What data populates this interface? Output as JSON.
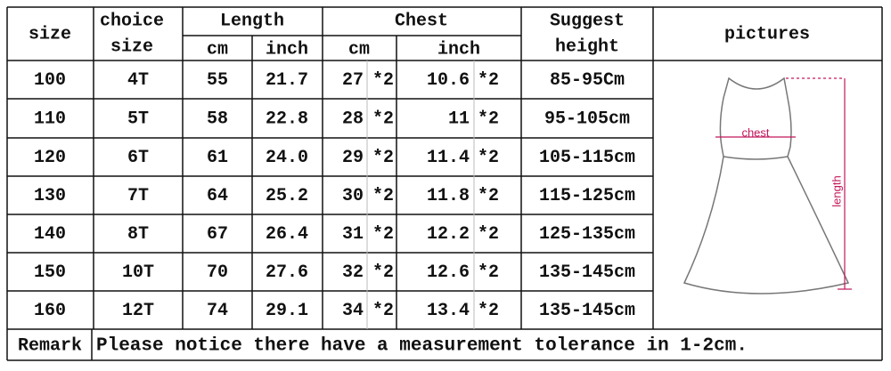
{
  "header": {
    "size": "size",
    "choice_size": [
      "choice",
      "size"
    ],
    "length": "Length",
    "chest": "Chest",
    "suggest_height": [
      "Suggest",
      "height"
    ],
    "pictures": "pictures",
    "sub": [
      "cm",
      "inch",
      "cm",
      "inch"
    ]
  },
  "table": {
    "rows": [
      [
        "100",
        "4T",
        "55",
        "21.7",
        "27",
        "*2",
        "10.6",
        "*2",
        "85-95Cm"
      ],
      [
        "110",
        "5T",
        "58",
        "22.8",
        "28",
        "*2",
        "11",
        "*2",
        "95-105cm"
      ],
      [
        "120",
        "6T",
        "61",
        "24.0",
        "29",
        "*2",
        "11.4",
        "*2",
        "105-115cm"
      ],
      [
        "130",
        "7T",
        "64",
        "25.2",
        "30",
        "*2",
        "11.8",
        "*2",
        "115-125cm"
      ],
      [
        "140",
        "8T",
        "67",
        "26.4",
        "31",
        "*2",
        "12.2",
        "*2",
        "125-135cm"
      ],
      [
        "150",
        "10T",
        "70",
        "27.6",
        "32",
        "*2",
        "12.6",
        "*2",
        "135-145cm"
      ],
      [
        "160",
        "12T",
        "74",
        "29.1",
        "34",
        "*2",
        "13.4",
        "*2",
        "135-145cm"
      ]
    ]
  },
  "remark": {
    "label": "Remark",
    "text": "Please notice there have a measurement tolerance in 1-2cm."
  },
  "picture": {
    "chest": "chest",
    "length": "length"
  }
}
